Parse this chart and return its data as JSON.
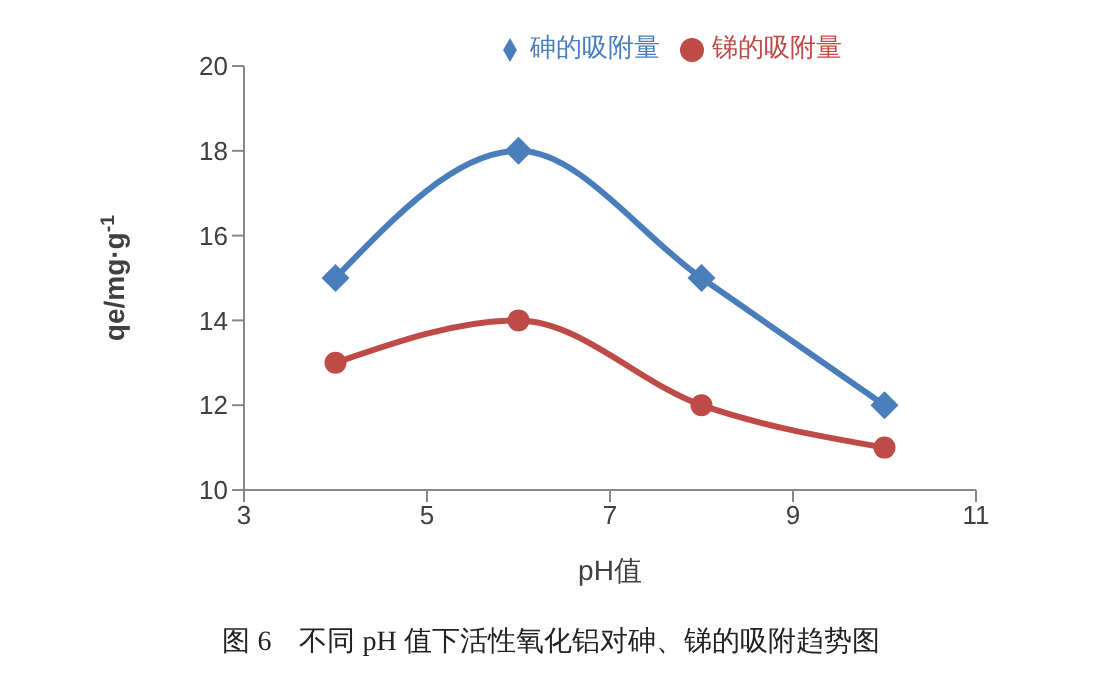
{
  "chart_data": {
    "type": "line",
    "xlabel": "pH值",
    "ylabel": "qe/mg·g$^{-1}$",
    "x": [
      4,
      6,
      8,
      10
    ],
    "series": [
      {
        "name": "砷的吸附量",
        "color": "#4a7ebb",
        "values": [
          15,
          18,
          15,
          12
        ],
        "marker": "diamond"
      },
      {
        "name": "锑的吸附量",
        "color": "#be4b48",
        "values": [
          13,
          14,
          12,
          11
        ],
        "marker": "circle"
      }
    ],
    "xlim": [
      3,
      11
    ],
    "xticks": [
      3,
      5,
      7,
      9,
      11
    ],
    "ylim": [
      10,
      20
    ],
    "yticks": [
      10,
      12,
      14,
      16,
      18,
      20
    ],
    "legend": "top",
    "line_style": "solid",
    "annotations": [
      "图 6    不同 pH 值下活性氧化铝对砷、锑的吸附趋势图"
    ]
  }
}
